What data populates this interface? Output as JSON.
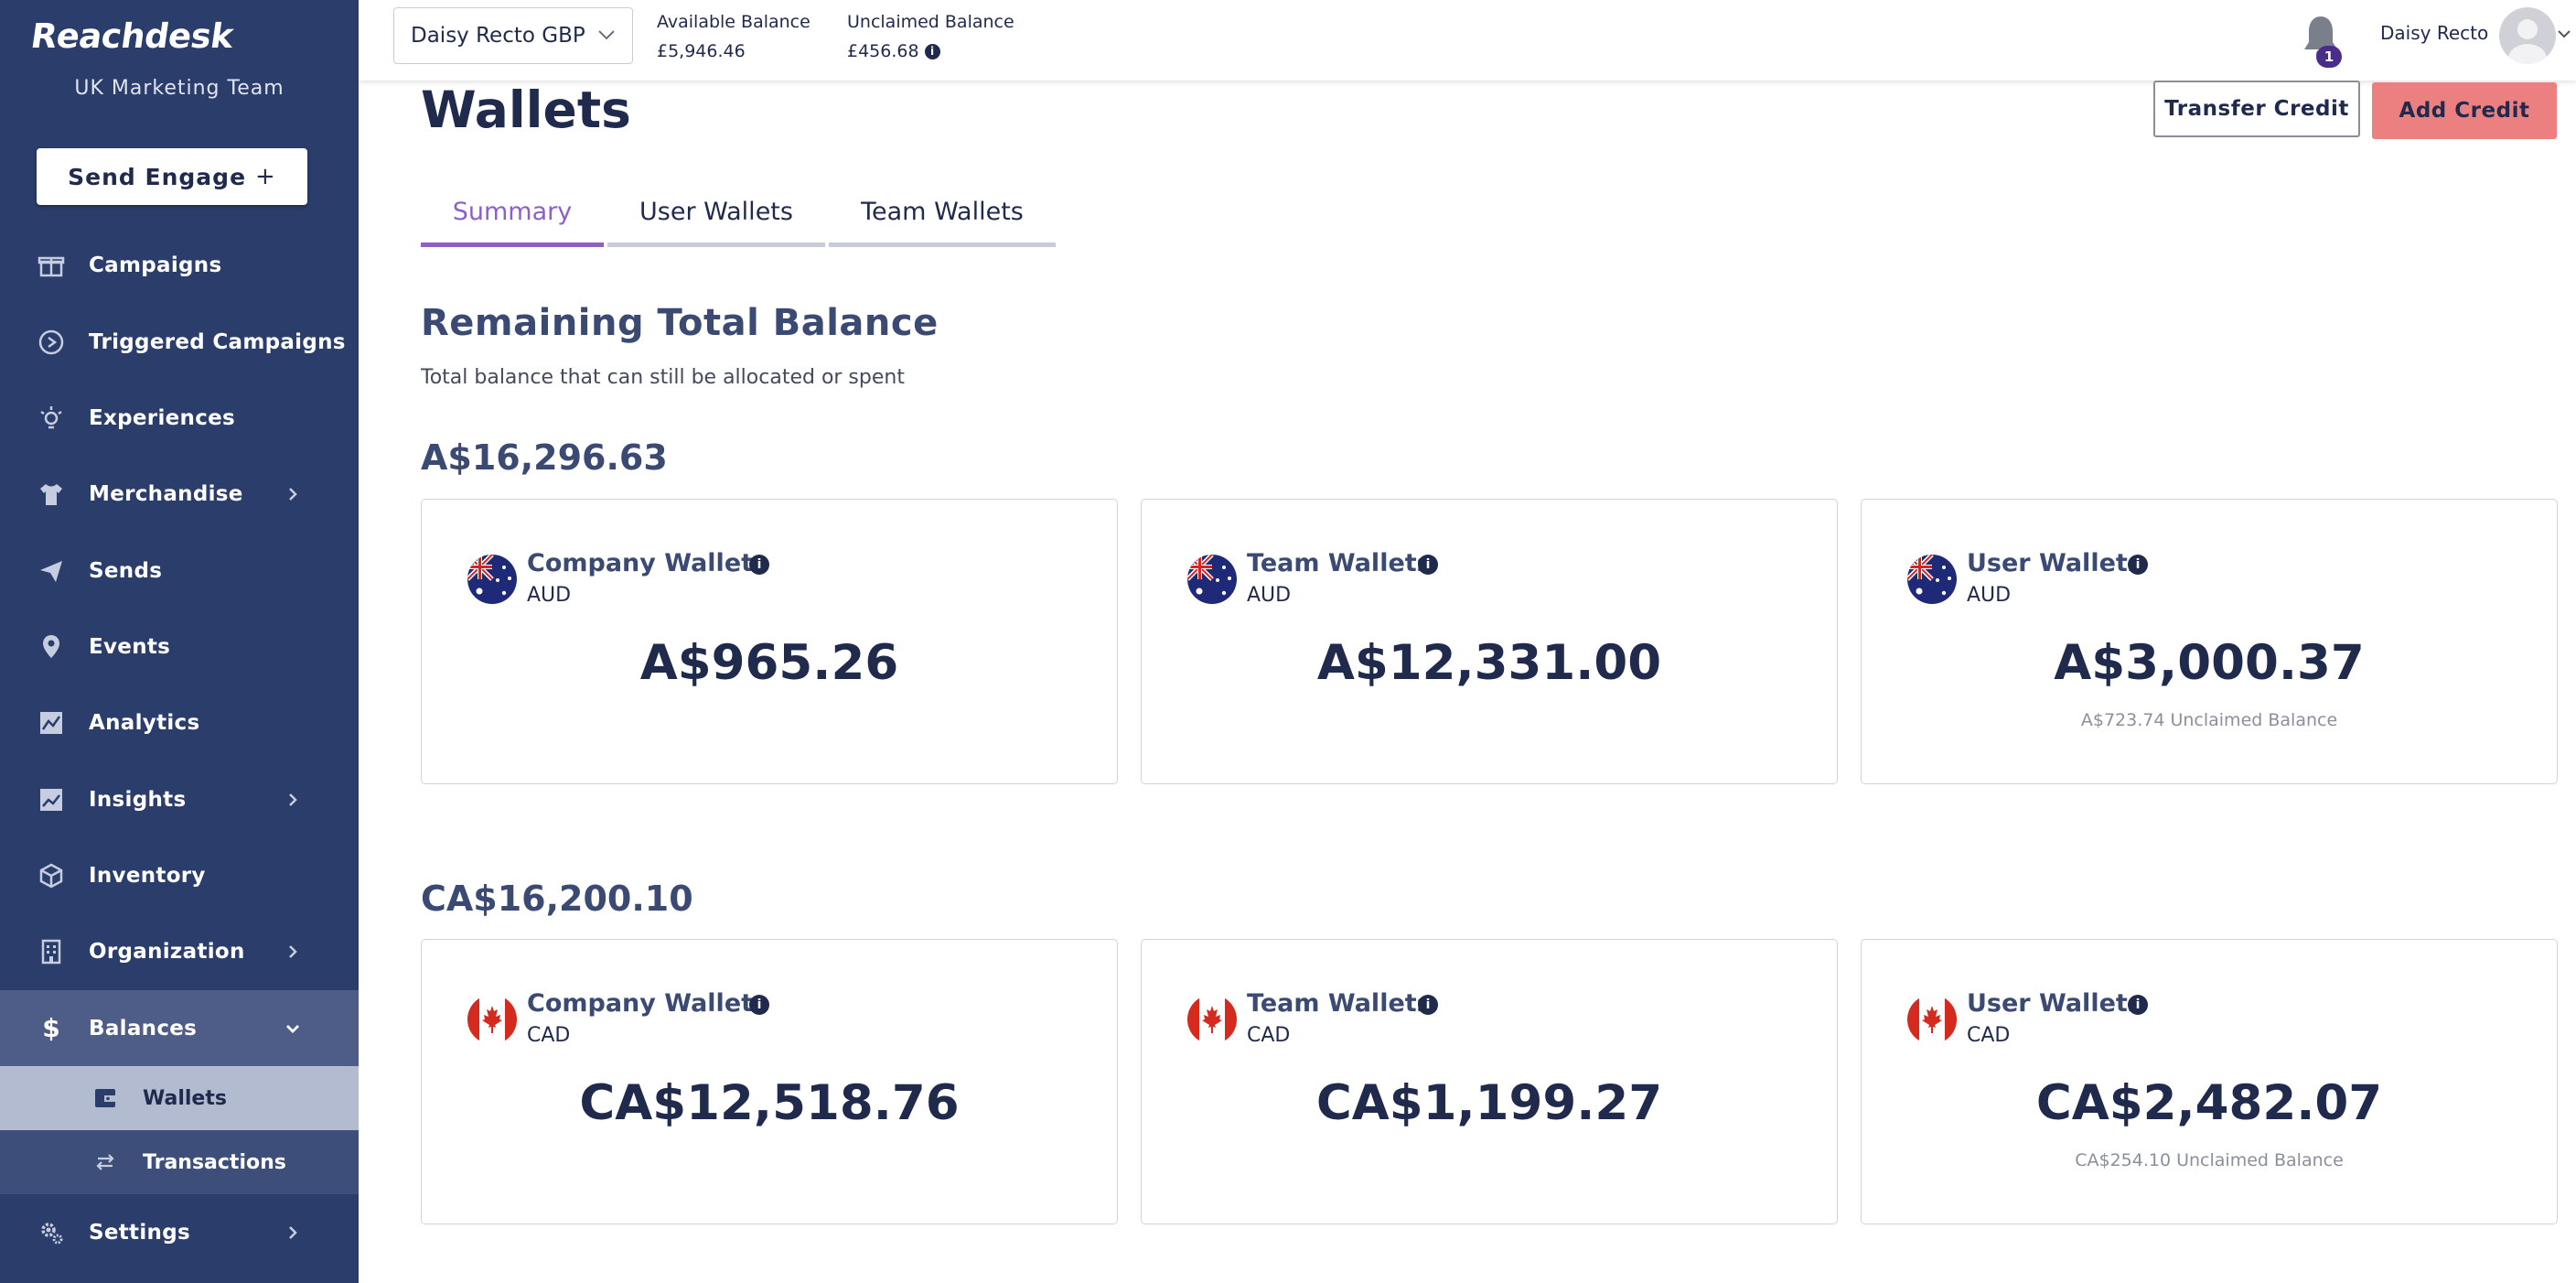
{
  "brand": {
    "name": "Reachdesk",
    "team": "UK Marketing Team"
  },
  "send_engage": {
    "label": "Send Engage",
    "icon": "plus-icon"
  },
  "nav": [
    {
      "label": "Campaigns",
      "icon": "gift-icon"
    },
    {
      "label": "Triggered Campaigns",
      "icon": "play-circle-icon"
    },
    {
      "label": "Experiences",
      "icon": "lightbulb-icon"
    },
    {
      "label": "Merchandise",
      "icon": "tshirt-icon"
    },
    {
      "label": "Sends",
      "icon": "paper-plane-icon"
    },
    {
      "label": "Events",
      "icon": "location-pin-icon"
    },
    {
      "label": "Analytics",
      "icon": "chart-icon"
    },
    {
      "label": "Insights",
      "icon": "insights-icon"
    },
    {
      "label": "Inventory",
      "icon": "box-icon"
    },
    {
      "label": "Organization",
      "icon": "building-icon"
    },
    {
      "label": "Balances",
      "icon": "dollar-icon"
    },
    {
      "label": "Settings",
      "icon": "gear-icon"
    }
  ],
  "balances_sub": [
    {
      "label": "Wallets",
      "icon": "wallet-icon"
    },
    {
      "label": "Transactions",
      "icon": "swap-arrows-icon"
    }
  ],
  "topbar": {
    "account": "Daisy Recto GBP",
    "available_label": "Available Balance",
    "available_value": "£5,946.46",
    "unclaimed_label": "Unclaimed Balance",
    "unclaimed_value": "£456.68",
    "notification_count": "1",
    "user_name": "Daisy Recto"
  },
  "page": {
    "title": "Wallets",
    "transfer_label": "Transfer Credit",
    "add_label": "Add Credit",
    "tabs": [
      "Summary",
      "User Wallets",
      "Team Wallets"
    ],
    "section_title": "Remaining Total Balance",
    "section_sub": "Total balance that can still be allocated or spent"
  },
  "groups": [
    {
      "total": "A$16,296.63",
      "flag": "australia-flag-icon",
      "cards": [
        {
          "title": "Company Wallets",
          "currency": "AUD",
          "amount": "A$965.26",
          "unclaimed": ""
        },
        {
          "title": "Team Wallets",
          "currency": "AUD",
          "amount": "A$12,331.00",
          "unclaimed": ""
        },
        {
          "title": "User Wallets",
          "currency": "AUD",
          "amount": "A$3,000.37",
          "unclaimed": "A$723.74 Unclaimed Balance"
        }
      ]
    },
    {
      "total": "CA$16,200.10",
      "flag": "canada-flag-icon",
      "cards": [
        {
          "title": "Company Wallets",
          "currency": "CAD",
          "amount": "CA$12,518.76",
          "unclaimed": ""
        },
        {
          "title": "Team Wallets",
          "currency": "CAD",
          "amount": "CA$1,199.27",
          "unclaimed": ""
        },
        {
          "title": "User Wallets",
          "currency": "CAD",
          "amount": "CA$2,482.07",
          "unclaimed": "CA$254.10 Unclaimed Balance"
        }
      ]
    }
  ],
  "colors": {
    "sidebar": "#2b3d6b",
    "accent": "#8e5ec9",
    "add_button": "#ec7f7f",
    "navy": "#1f2a4d"
  }
}
